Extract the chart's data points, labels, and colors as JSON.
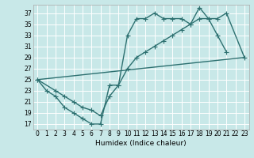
{
  "background_color": "#c8e8e8",
  "grid_color": "#d0e8e8",
  "line_color": "#2d7070",
  "xlabel": "Humidex (Indice chaleur)",
  "xlim": [
    -0.5,
    23.5
  ],
  "ylim": [
    16,
    38.5
  ],
  "xticks": [
    0,
    1,
    2,
    3,
    4,
    5,
    6,
    7,
    8,
    9,
    10,
    11,
    12,
    13,
    14,
    15,
    16,
    17,
    18,
    19,
    20,
    21,
    22,
    23
  ],
  "yticks": [
    17,
    19,
    21,
    23,
    25,
    27,
    29,
    31,
    33,
    35,
    37
  ],
  "line1_x": [
    0,
    1,
    2,
    3,
    4,
    5,
    6,
    7,
    8,
    9,
    10,
    11,
    12,
    13,
    14,
    15,
    16,
    17,
    18,
    19,
    20,
    21
  ],
  "line1_y": [
    25,
    23,
    22,
    20,
    19,
    18,
    17,
    17,
    24,
    24,
    33,
    36,
    36,
    37,
    36,
    36,
    36,
    35,
    38,
    36,
    33,
    30
  ],
  "line2_x": [
    0,
    2,
    3,
    4,
    5,
    6,
    7,
    8,
    9,
    10,
    11,
    12,
    13,
    14,
    15,
    16,
    17,
    18,
    19,
    20,
    21,
    23
  ],
  "line2_y": [
    25,
    23,
    22,
    21,
    20,
    19.5,
    18.5,
    22,
    24,
    27,
    29,
    30,
    31,
    32,
    33,
    34,
    35,
    36,
    36,
    36,
    37,
    29
  ],
  "line3_x": [
    0,
    23
  ],
  "line3_y": [
    25,
    29
  ],
  "tick_fontsize": 5.5,
  "xlabel_fontsize": 6.5,
  "line_width": 1.0,
  "marker_size": 2.0
}
